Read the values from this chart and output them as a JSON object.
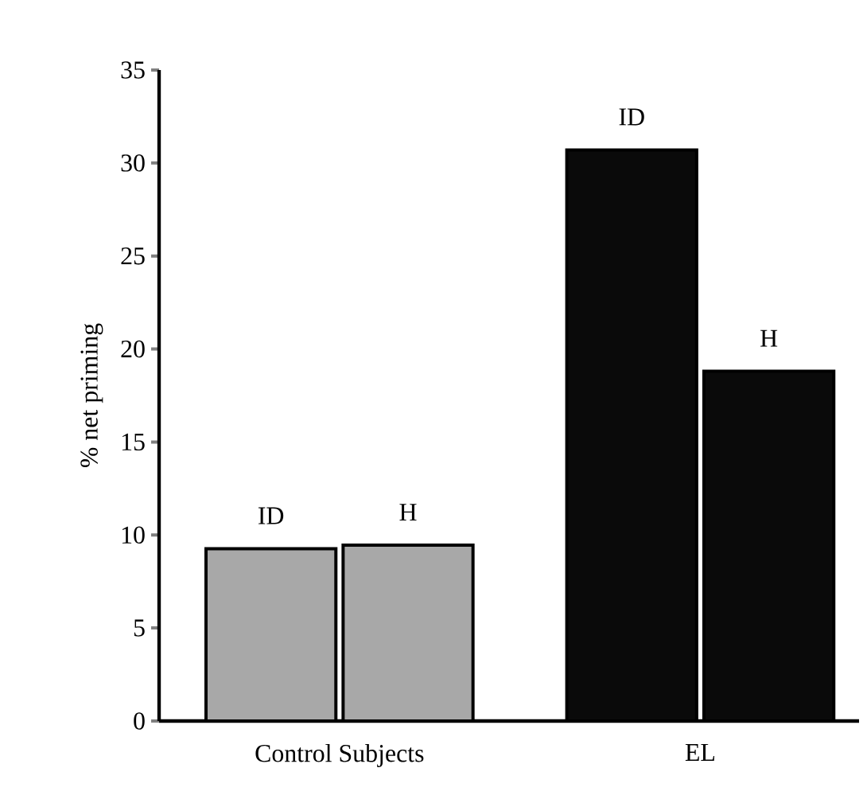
{
  "chart_data": {
    "type": "bar",
    "ylabel": "% net priming",
    "categories": [
      "Control Subjects",
      "EL"
    ],
    "series": [
      {
        "name": "ID",
        "colors": [
          "#a8a8a8",
          "#0a0a0a"
        ],
        "values": [
          9.26,
          30.7
        ]
      },
      {
        "name": "H",
        "colors": [
          "#a8a8a8",
          "#0a0a0a"
        ],
        "values": [
          9.45,
          18.8
        ]
      }
    ],
    "ylim": [
      0,
      35
    ],
    "yticks": [
      0,
      5,
      10,
      15,
      20,
      25,
      30,
      35
    ],
    "grid": false,
    "legend": false
  }
}
